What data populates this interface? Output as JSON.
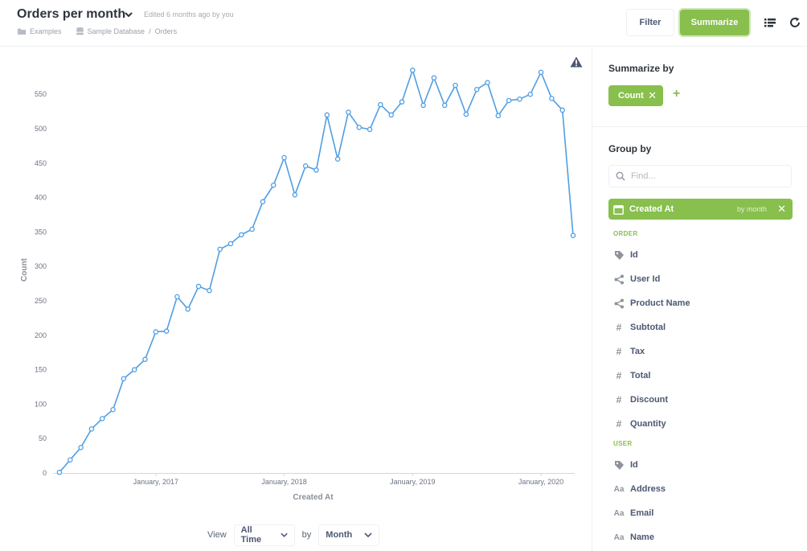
{
  "header": {
    "title": "Orders per month",
    "edited": "Edited 6 months ago by you",
    "breadcrumbs": [
      "Examples",
      "Sample Database",
      "Orders"
    ],
    "breadcrumb_sep": "/",
    "filter_label": "Filter",
    "summarize_label": "Summarize"
  },
  "colors": {
    "accent": "#88bf4d",
    "line": "#509ee3"
  },
  "chart_data": {
    "type": "line",
    "xlabel": "Created At",
    "ylabel": "Count",
    "ylim": [
      0,
      590
    ],
    "yticks": [
      0,
      50,
      100,
      150,
      200,
      250,
      300,
      350,
      400,
      450,
      500,
      550
    ],
    "xtick_labels": [
      "January, 2017",
      "January, 2018",
      "January, 2019",
      "January, 2020"
    ],
    "x": [
      "2016-04",
      "2016-05",
      "2016-06",
      "2016-07",
      "2016-08",
      "2016-09",
      "2016-10",
      "2016-11",
      "2016-12",
      "2017-01",
      "2017-02",
      "2017-03",
      "2017-04",
      "2017-05",
      "2017-06",
      "2017-07",
      "2017-08",
      "2017-09",
      "2017-10",
      "2017-11",
      "2017-12",
      "2018-01",
      "2018-02",
      "2018-03",
      "2018-04",
      "2018-05",
      "2018-06",
      "2018-07",
      "2018-08",
      "2018-09",
      "2018-10",
      "2018-11",
      "2018-12",
      "2019-01",
      "2019-02",
      "2019-03",
      "2019-04",
      "2019-05",
      "2019-06",
      "2019-07",
      "2019-08",
      "2019-09",
      "2019-10",
      "2019-11",
      "2019-12",
      "2020-01",
      "2020-02",
      "2020-03",
      "2020-04"
    ],
    "series": [
      {
        "values": [
          1,
          19,
          37,
          64,
          79,
          92,
          137,
          150,
          165,
          205,
          206,
          256,
          238,
          271,
          265,
          325,
          333,
          346,
          354,
          394,
          418,
          458,
          404,
          446,
          440,
          520,
          456,
          524,
          502,
          499,
          535,
          520,
          539,
          585,
          534,
          574,
          534,
          563,
          521,
          557,
          567,
          519,
          541,
          543,
          550,
          582,
          544,
          527,
          345
        ]
      }
    ]
  },
  "footer": {
    "view_label": "View",
    "view_value": "All Time",
    "by_label": "by",
    "by_value": "Month"
  },
  "sidebar": {
    "summarize_by": "Summarize by",
    "metric_label": "Count",
    "metric_remove": "✕",
    "add_metric": "+",
    "group_by": "Group by",
    "find_placeholder": "Find...",
    "group_selected": {
      "label": "Created At",
      "by": "by month",
      "remove": "✕"
    },
    "sections": [
      {
        "name": "ORDER",
        "fields": [
          {
            "label": "Id",
            "icon": "tag-icon"
          },
          {
            "label": "User Id",
            "icon": "connections-icon"
          },
          {
            "label": "Product Name",
            "icon": "connections-icon"
          },
          {
            "label": "Subtotal",
            "icon": "number-icon"
          },
          {
            "label": "Tax",
            "icon": "number-icon"
          },
          {
            "label": "Total",
            "icon": "number-icon"
          },
          {
            "label": "Discount",
            "icon": "number-icon"
          },
          {
            "label": "Quantity",
            "icon": "number-icon"
          }
        ]
      },
      {
        "name": "USER",
        "fields": [
          {
            "label": "Id",
            "icon": "tag-icon"
          },
          {
            "label": "Address",
            "icon": "text-icon"
          },
          {
            "label": "Email",
            "icon": "text-icon"
          },
          {
            "label": "Name",
            "icon": "text-icon"
          }
        ]
      }
    ],
    "number_glyph": "#",
    "text_glyph": "Aa"
  }
}
